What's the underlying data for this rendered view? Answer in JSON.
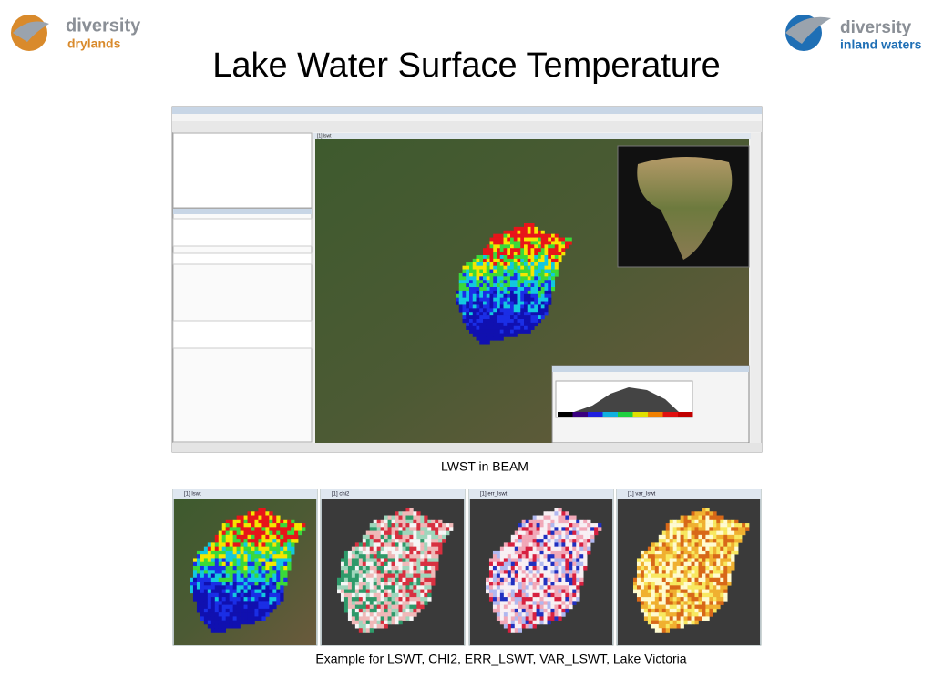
{
  "logos": {
    "left": {
      "line1": "diversity",
      "line2": "drylands"
    },
    "right": {
      "line1": "diversity",
      "line2": "inland waters"
    }
  },
  "title": "Lake Water Surface Temperature",
  "screenshot": {
    "tab": "[1] lswt",
    "caption": "LWST in BEAM"
  },
  "panels": [
    {
      "title": "[1] lswt"
    },
    {
      "title": "[1] chi2"
    },
    {
      "title": "[1] err_lswt"
    },
    {
      "title": "[1] var_lswt"
    }
  ],
  "caption": "Example for LSWT, CHI2, ERR_LSWT, VAR_LSWT, Lake Victoria"
}
